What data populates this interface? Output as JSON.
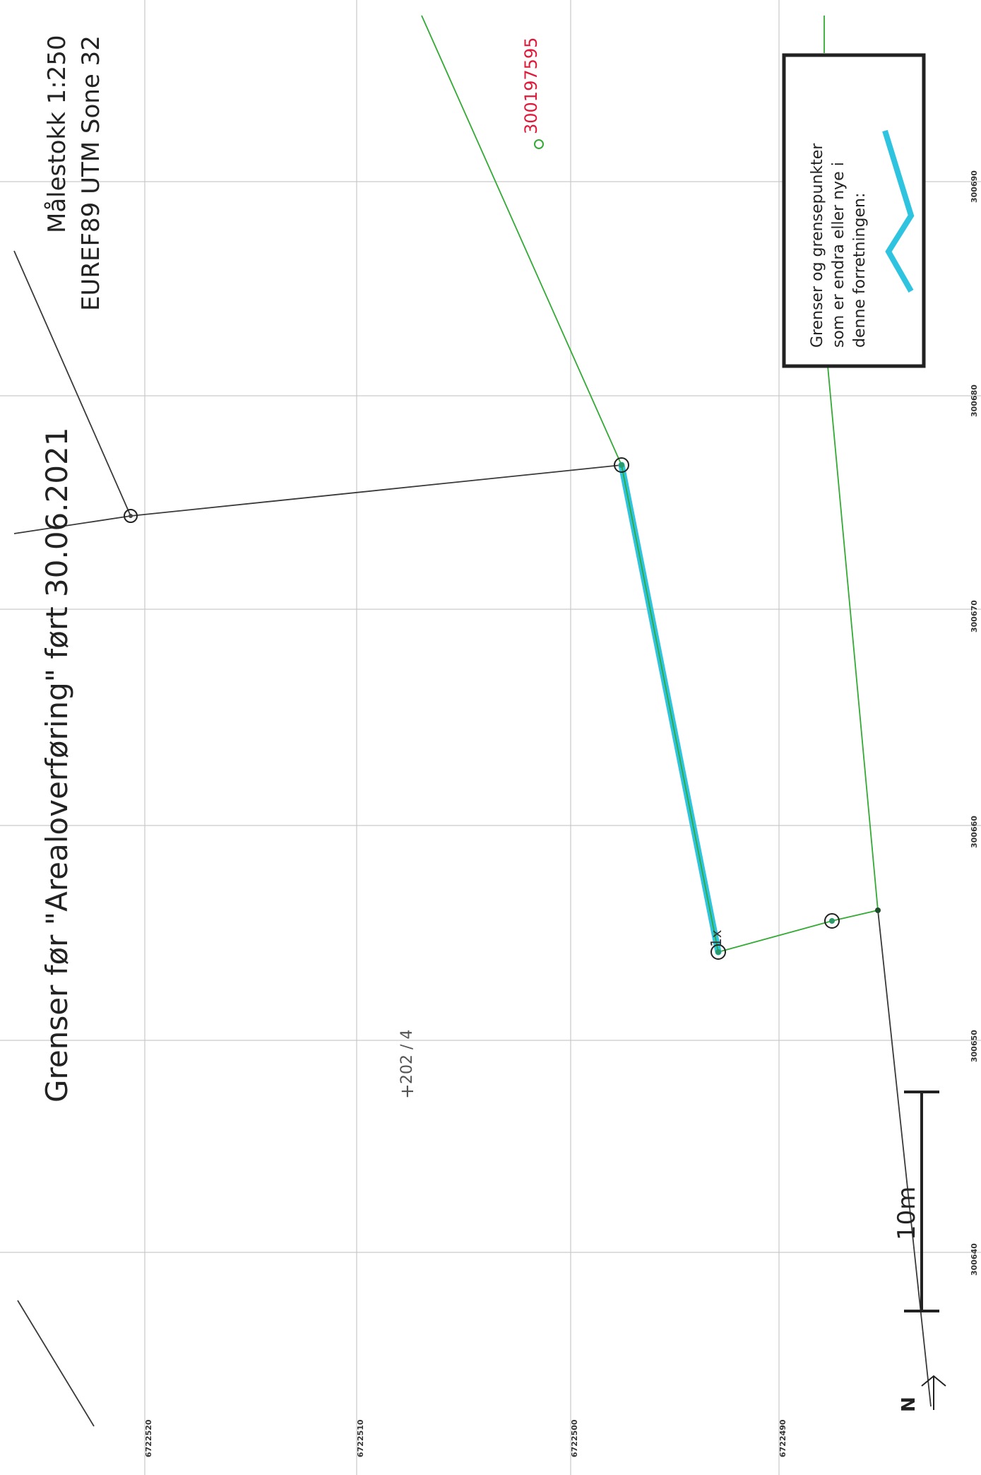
{
  "title": "Grenser før \"Arealoverføring\" ført 30.06.2021",
  "scale": {
    "line1": "Målestokk 1:250",
    "line2": "EUREF89 UTM Sone 32"
  },
  "legend": {
    "line1": "Grenser og grensepunkter",
    "line2": "som er endra eller nye i",
    "line3": "denne forretningen:",
    "symbol_color": "#2ec4e0"
  },
  "grid_labels": {
    "eastings": [
      "300640",
      "300650",
      "300660",
      "300670",
      "300680",
      "300690"
    ],
    "northings": [
      "6722490",
      "6722500",
      "6722510",
      "6722520"
    ]
  },
  "point_label": "300197595",
  "parcel_label": "202 / 4",
  "point_marker": "1x",
  "scalebar_label": "10m",
  "north_label": "N",
  "colors": {
    "old_boundary": "#3a3a3a",
    "existing_boundary": "#33aa33",
    "changed_boundary": "#2ec4e0",
    "point_label": "#e0193a"
  }
}
